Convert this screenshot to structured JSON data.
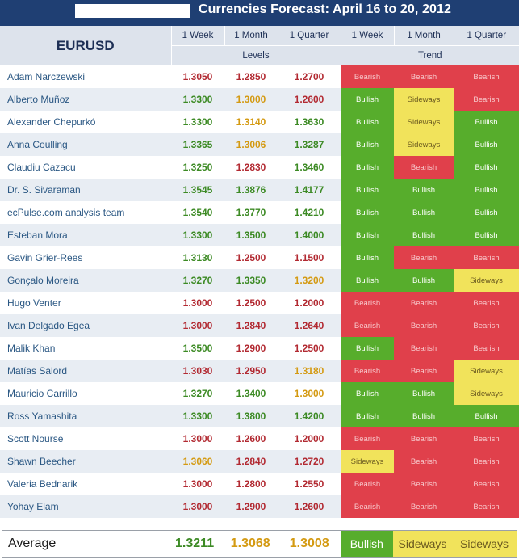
{
  "title": "Currencies Forecast: April 16 to 20, 2012",
  "header": {
    "symbol": "EURUSD",
    "periods": [
      "1 Week",
      "1 Month",
      "1 Quarter",
      "1 Week",
      "1 Month",
      "1 Quarter"
    ],
    "levels_label": "Levels",
    "trend_label": "Trend"
  },
  "rows": [
    {
      "name": "Adam Narczewski",
      "levels": [
        "1.3050",
        "1.2850",
        "1.2700"
      ],
      "level_colors": [
        "red",
        "red",
        "red"
      ],
      "trends": [
        "Bearish",
        "Bearish",
        "Bearish"
      ]
    },
    {
      "name": "Alberto Muñoz",
      "levels": [
        "1.3300",
        "1.3000",
        "1.2600"
      ],
      "level_colors": [
        "green",
        "amber",
        "red"
      ],
      "trends": [
        "Bullish",
        "Sideways",
        "Bearish"
      ]
    },
    {
      "name": "Alexander Chepurkó",
      "levels": [
        "1.3300",
        "1.3140",
        "1.3630"
      ],
      "level_colors": [
        "green",
        "amber",
        "green"
      ],
      "trends": [
        "Bullish",
        "Sideways",
        "Bullish"
      ]
    },
    {
      "name": "Anna Coulling",
      "levels": [
        "1.3365",
        "1.3006",
        "1.3287"
      ],
      "level_colors": [
        "green",
        "amber",
        "green"
      ],
      "trends": [
        "Bullish",
        "Sideways",
        "Bullish"
      ]
    },
    {
      "name": "Claudiu Cazacu",
      "levels": [
        "1.3250",
        "1.2830",
        "1.3460"
      ],
      "level_colors": [
        "green",
        "red",
        "green"
      ],
      "trends": [
        "Bullish",
        "Bearish",
        "Bullish"
      ]
    },
    {
      "name": "Dr. S. Sivaraman",
      "levels": [
        "1.3545",
        "1.3876",
        "1.4177"
      ],
      "level_colors": [
        "green",
        "green",
        "green"
      ],
      "trends": [
        "Bullish",
        "Bullish",
        "Bullish"
      ]
    },
    {
      "name": "ecPulse.com analysis team",
      "levels": [
        "1.3540",
        "1.3770",
        "1.4210"
      ],
      "level_colors": [
        "green",
        "green",
        "green"
      ],
      "trends": [
        "Bullish",
        "Bullish",
        "Bullish"
      ]
    },
    {
      "name": "Esteban Mora",
      "levels": [
        "1.3300",
        "1.3500",
        "1.4000"
      ],
      "level_colors": [
        "green",
        "green",
        "green"
      ],
      "trends": [
        "Bullish",
        "Bullish",
        "Bullish"
      ]
    },
    {
      "name": "Gavin Grier-Rees",
      "levels": [
        "1.3130",
        "1.2500",
        "1.1500"
      ],
      "level_colors": [
        "green",
        "red",
        "red"
      ],
      "trends": [
        "Bullish",
        "Bearish",
        "Bearish"
      ]
    },
    {
      "name": "Gonçalo Moreira",
      "levels": [
        "1.3270",
        "1.3350",
        "1.3200"
      ],
      "level_colors": [
        "green",
        "green",
        "amber"
      ],
      "trends": [
        "Bullish",
        "Bullish",
        "Sideways"
      ]
    },
    {
      "name": "Hugo Venter",
      "levels": [
        "1.3000",
        "1.2500",
        "1.2000"
      ],
      "level_colors": [
        "red",
        "red",
        "red"
      ],
      "trends": [
        "Bearish",
        "Bearish",
        "Bearish"
      ]
    },
    {
      "name": "Ivan Delgado Egea",
      "levels": [
        "1.3000",
        "1.2840",
        "1.2640"
      ],
      "level_colors": [
        "red",
        "red",
        "red"
      ],
      "trends": [
        "Bearish",
        "Bearish",
        "Bearish"
      ]
    },
    {
      "name": "Malik Khan",
      "levels": [
        "1.3500",
        "1.2900",
        "1.2500"
      ],
      "level_colors": [
        "green",
        "red",
        "red"
      ],
      "trends": [
        "Bullish",
        "Bearish",
        "Bearish"
      ]
    },
    {
      "name": "Matías Salord",
      "levels": [
        "1.3030",
        "1.2950",
        "1.3180"
      ],
      "level_colors": [
        "red",
        "red",
        "amber"
      ],
      "trends": [
        "Bearish",
        "Bearish",
        "Sideways"
      ]
    },
    {
      "name": "Mauricio Carrillo",
      "levels": [
        "1.3270",
        "1.3400",
        "1.3000"
      ],
      "level_colors": [
        "green",
        "green",
        "amber"
      ],
      "trends": [
        "Bullish",
        "Bullish",
        "Sideways"
      ]
    },
    {
      "name": "Ross Yamashita",
      "levels": [
        "1.3300",
        "1.3800",
        "1.4200"
      ],
      "level_colors": [
        "green",
        "green",
        "green"
      ],
      "trends": [
        "Bullish",
        "Bullish",
        "Bullish"
      ]
    },
    {
      "name": "Scott Nourse",
      "levels": [
        "1.3000",
        "1.2600",
        "1.2000"
      ],
      "level_colors": [
        "red",
        "red",
        "red"
      ],
      "trends": [
        "Bearish",
        "Bearish",
        "Bearish"
      ]
    },
    {
      "name": "Shawn Beecher",
      "levels": [
        "1.3060",
        "1.2840",
        "1.2720"
      ],
      "level_colors": [
        "amber",
        "red",
        "red"
      ],
      "trends": [
        "Sideways",
        "Bearish",
        "Bearish"
      ]
    },
    {
      "name": "Valeria Bednarik",
      "levels": [
        "1.3000",
        "1.2800",
        "1.2550"
      ],
      "level_colors": [
        "red",
        "red",
        "red"
      ],
      "trends": [
        "Bearish",
        "Bearish",
        "Bearish"
      ]
    },
    {
      "name": "Yohay Elam",
      "levels": [
        "1.3000",
        "1.2900",
        "1.2600"
      ],
      "level_colors": [
        "red",
        "red",
        "red"
      ],
      "trends": [
        "Bearish",
        "Bearish",
        "Bearish"
      ]
    }
  ],
  "average": {
    "label": "Average",
    "levels": [
      "1.3211",
      "1.3068",
      "1.3008"
    ],
    "level_colors": [
      "green",
      "amber",
      "amber"
    ],
    "trends": [
      "Bullish",
      "Sideways",
      "Sideways"
    ]
  },
  "colors": {
    "title_bar": "#1f3f73",
    "header_bg": "#dde3ec",
    "bearish": "#e0404b",
    "bullish": "#57ad2c",
    "sideways": "#f1e35b",
    "level_green": "#3c8a24",
    "level_red": "#b22a32",
    "level_amber": "#d49a12"
  }
}
